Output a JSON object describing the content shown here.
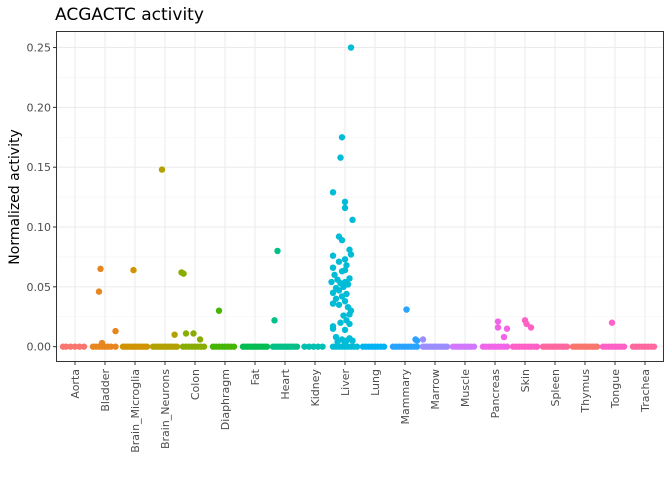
{
  "chart_data": {
    "type": "scatter",
    "title": "ACGACTC activity",
    "xlabel": "",
    "ylabel": "Normalized activity",
    "ylim": [
      -0.012,
      0.263
    ],
    "yticks": [
      "0.00",
      "0.05",
      "0.10",
      "0.15",
      "0.20",
      "0.25"
    ],
    "grid": true,
    "legend": "none",
    "categories": [
      "Aorta",
      "Bladder",
      "Brain_Microglia",
      "Brain_Neurons",
      "Colon",
      "Diaphragm",
      "Fat",
      "Heart",
      "Kidney",
      "Liver",
      "Lung",
      "Mammary",
      "Marrow",
      "Muscle",
      "Pancreas",
      "Skin",
      "Spleen",
      "Thymus",
      "Tongue",
      "Trachea"
    ],
    "colors": [
      "#F8766D",
      "#E7851E",
      "#D09400",
      "#B2A100",
      "#89AC00",
      "#45B500",
      "#00BC51",
      "#00C087",
      "#00C0B2",
      "#00BCD6",
      "#00B3F2",
      "#29A3FF",
      "#9C8DFF",
      "#D277FF",
      "#F166E8",
      "#FF61C7",
      "#FF689E",
      "#F8766D",
      "#FF61C7",
      "#FF689E"
    ],
    "series": [
      {
        "name": "Aorta",
        "points": [
          [
            -0.4,
            0
          ],
          [
            -0.3,
            0
          ],
          [
            -0.15,
            0
          ],
          [
            0.0,
            0
          ],
          [
            0.15,
            0
          ],
          [
            0.3,
            0
          ]
        ]
      },
      {
        "name": "Bladder",
        "points": [
          [
            -0.4,
            0
          ],
          [
            -0.3,
            0
          ],
          [
            -0.2,
            0
          ],
          [
            -0.1,
            0
          ],
          [
            0.0,
            0
          ],
          [
            0.1,
            0
          ],
          [
            0.2,
            0
          ],
          [
            0.35,
            0
          ],
          [
            -0.15,
            0.065
          ],
          [
            -0.2,
            0.046
          ],
          [
            0.35,
            0.013
          ],
          [
            -0.1,
            0.003
          ]
        ]
      },
      {
        "name": "Brain_Microglia",
        "points": [
          [
            -0.4,
            0
          ],
          [
            -0.32,
            0
          ],
          [
            -0.24,
            0
          ],
          [
            -0.16,
            0
          ],
          [
            -0.08,
            0
          ],
          [
            0.0,
            0
          ],
          [
            0.08,
            0
          ],
          [
            0.16,
            0
          ],
          [
            0.24,
            0
          ],
          [
            0.32,
            0
          ],
          [
            0.4,
            0
          ],
          [
            -0.05,
            0.064
          ]
        ]
      },
      {
        "name": "Brain_Neurons",
        "points": [
          [
            -0.4,
            0
          ],
          [
            -0.32,
            0
          ],
          [
            -0.24,
            0
          ],
          [
            -0.16,
            0
          ],
          [
            -0.08,
            0
          ],
          [
            0.0,
            0
          ],
          [
            0.08,
            0
          ],
          [
            0.16,
            0
          ],
          [
            0.24,
            0
          ],
          [
            0.32,
            0
          ],
          [
            0.4,
            0
          ],
          [
            -0.1,
            0.148
          ],
          [
            0.32,
            0.01
          ]
        ]
      },
      {
        "name": "Colon",
        "points": [
          [
            -0.4,
            0
          ],
          [
            -0.3,
            0
          ],
          [
            -0.2,
            0
          ],
          [
            -0.1,
            0
          ],
          [
            0.0,
            0
          ],
          [
            0.1,
            0
          ],
          [
            0.2,
            0
          ],
          [
            0.3,
            0
          ],
          [
            -0.45,
            0.062
          ],
          [
            -0.38,
            0.061
          ],
          [
            -0.3,
            0.011
          ],
          [
            -0.05,
            0.011
          ],
          [
            0.17,
            0.006
          ]
        ]
      },
      {
        "name": "Diaphragm",
        "points": [
          [
            -0.4,
            0
          ],
          [
            -0.3,
            0
          ],
          [
            -0.2,
            0
          ],
          [
            -0.1,
            0
          ],
          [
            0.0,
            0
          ],
          [
            0.1,
            0
          ],
          [
            0.2,
            0
          ],
          [
            0.3,
            0
          ],
          [
            -0.2,
            0.03
          ]
        ]
      },
      {
        "name": "Fat",
        "points": [
          [
            -0.4,
            0
          ],
          [
            -0.32,
            0
          ],
          [
            -0.24,
            0
          ],
          [
            -0.16,
            0
          ],
          [
            -0.08,
            0
          ],
          [
            0.0,
            0
          ],
          [
            0.08,
            0
          ],
          [
            0.16,
            0
          ],
          [
            0.24,
            0
          ],
          [
            0.32,
            0
          ],
          [
            0.4,
            0
          ]
        ]
      },
      {
        "name": "Heart",
        "points": [
          [
            -0.4,
            0
          ],
          [
            -0.32,
            0
          ],
          [
            -0.24,
            0
          ],
          [
            -0.16,
            0
          ],
          [
            -0.08,
            0
          ],
          [
            0.0,
            0
          ],
          [
            0.08,
            0
          ],
          [
            0.16,
            0
          ],
          [
            0.24,
            0
          ],
          [
            0.32,
            0
          ],
          [
            0.4,
            0
          ],
          [
            -0.25,
            0.08
          ],
          [
            -0.35,
            0.022
          ]
        ]
      },
      {
        "name": "Kidney",
        "points": [
          [
            -0.35,
            0
          ],
          [
            -0.2,
            0
          ],
          [
            -0.05,
            0
          ],
          [
            0.1,
            0
          ],
          [
            0.25,
            0
          ]
        ]
      },
      {
        "name": "Liver",
        "points": [
          [
            -0.4,
            0
          ],
          [
            -0.3,
            0
          ],
          [
            -0.2,
            0
          ],
          [
            -0.1,
            0
          ],
          [
            0.0,
            0
          ],
          [
            0.1,
            0
          ],
          [
            0.2,
            0
          ],
          [
            0.3,
            0
          ],
          [
            0.4,
            0
          ],
          [
            0.2,
            0.25
          ],
          [
            -0.1,
            0.175
          ],
          [
            -0.15,
            0.158
          ],
          [
            -0.4,
            0.129
          ],
          [
            0.0,
            0.121
          ],
          [
            0.0,
            0.116
          ],
          [
            0.25,
            0.106
          ],
          [
            -0.2,
            0.092
          ],
          [
            -0.1,
            0.089
          ],
          [
            0.15,
            0.081
          ],
          [
            0.2,
            0.077
          ],
          [
            -0.4,
            0.076
          ],
          [
            0.0,
            0.073
          ],
          [
            -0.2,
            0.071
          ],
          [
            0.05,
            0.068
          ],
          [
            -0.4,
            0.066
          ],
          [
            0.0,
            0.064
          ],
          [
            -0.1,
            0.063
          ],
          [
            -0.35,
            0.06
          ],
          [
            0.15,
            0.057
          ],
          [
            -0.25,
            0.056
          ],
          [
            -0.45,
            0.054
          ],
          [
            0.0,
            0.054
          ],
          [
            -0.15,
            0.053
          ],
          [
            0.1,
            0.052
          ],
          [
            -0.05,
            0.05
          ],
          [
            -0.3,
            0.049
          ],
          [
            -0.2,
            0.047
          ],
          [
            -0.4,
            0.045
          ],
          [
            0.05,
            0.044
          ],
          [
            -0.1,
            0.042
          ],
          [
            -0.3,
            0.04
          ],
          [
            0.0,
            0.038
          ],
          [
            -0.4,
            0.036
          ],
          [
            -0.2,
            0.035
          ],
          [
            0.1,
            0.033
          ],
          [
            0.2,
            0.03
          ],
          [
            0.15,
            0.027
          ],
          [
            -0.05,
            0.026
          ],
          [
            0.05,
            0.022
          ],
          [
            -0.15,
            0.02
          ],
          [
            0.15,
            0.019
          ],
          [
            -0.4,
            0.017
          ],
          [
            -0.4,
            0.015
          ],
          [
            0.0,
            0.014
          ],
          [
            -0.3,
            0.008
          ],
          [
            0.15,
            0.007
          ],
          [
            -0.1,
            0.006
          ],
          [
            0.05,
            0.005
          ],
          [
            0.25,
            0.005
          ],
          [
            -0.25,
            0.004
          ],
          [
            0.0,
            0.003
          ]
        ]
      },
      {
        "name": "Lung",
        "points": [
          [
            -0.4,
            0
          ],
          [
            -0.3,
            0
          ],
          [
            -0.2,
            0
          ],
          [
            -0.1,
            0
          ],
          [
            0.0,
            0
          ],
          [
            0.1,
            0
          ],
          [
            0.2,
            0
          ],
          [
            0.3,
            0
          ]
        ]
      },
      {
        "name": "Mammary",
        "points": [
          [
            -0.4,
            0
          ],
          [
            -0.3,
            0
          ],
          [
            -0.2,
            0
          ],
          [
            -0.1,
            0
          ],
          [
            0.0,
            0
          ],
          [
            0.1,
            0
          ],
          [
            0.2,
            0
          ],
          [
            0.3,
            0
          ],
          [
            0.4,
            0
          ],
          [
            0.05,
            0.031
          ],
          [
            0.35,
            0.006
          ],
          [
            0.4,
            0.005
          ]
        ]
      },
      {
        "name": "Marrow",
        "points": [
          [
            -0.4,
            0
          ],
          [
            -0.32,
            0
          ],
          [
            -0.24,
            0
          ],
          [
            -0.16,
            0
          ],
          [
            -0.08,
            0
          ],
          [
            0.0,
            0
          ],
          [
            0.08,
            0
          ],
          [
            0.16,
            0
          ],
          [
            0.24,
            0
          ],
          [
            0.32,
            0
          ],
          [
            0.4,
            0
          ],
          [
            -0.4,
            0.006
          ]
        ]
      },
      {
        "name": "Muscle",
        "points": [
          [
            -0.4,
            0
          ],
          [
            -0.3,
            0
          ],
          [
            -0.2,
            0
          ],
          [
            -0.1,
            0
          ],
          [
            0.0,
            0
          ],
          [
            0.1,
            0
          ],
          [
            0.2,
            0
          ],
          [
            0.3,
            0
          ]
        ]
      },
      {
        "name": "Pancreas",
        "points": [
          [
            -0.4,
            0
          ],
          [
            -0.3,
            0
          ],
          [
            -0.2,
            0
          ],
          [
            -0.1,
            0
          ],
          [
            0.0,
            0
          ],
          [
            0.1,
            0
          ],
          [
            0.2,
            0
          ],
          [
            0.3,
            0
          ],
          [
            0.4,
            0
          ],
          [
            0.1,
            0.021
          ],
          [
            0.1,
            0.016
          ],
          [
            0.3,
            0.008
          ],
          [
            0.4,
            0.015
          ]
        ]
      },
      {
        "name": "Skin",
        "points": [
          [
            -0.4,
            0
          ],
          [
            -0.3,
            0
          ],
          [
            -0.2,
            0
          ],
          [
            -0.1,
            0
          ],
          [
            0.0,
            0
          ],
          [
            0.1,
            0
          ],
          [
            0.2,
            0
          ],
          [
            0.3,
            0
          ],
          [
            0.4,
            0
          ],
          [
            0.0,
            0.022
          ],
          [
            0.05,
            0.019
          ],
          [
            0.2,
            0.016
          ]
        ]
      },
      {
        "name": "Spleen",
        "points": [
          [
            -0.4,
            0
          ],
          [
            -0.32,
            0
          ],
          [
            -0.24,
            0
          ],
          [
            -0.16,
            0
          ],
          [
            -0.08,
            0
          ],
          [
            0.0,
            0
          ],
          [
            0.08,
            0
          ],
          [
            0.16,
            0
          ],
          [
            0.24,
            0
          ],
          [
            0.32,
            0
          ],
          [
            0.4,
            0
          ]
        ]
      },
      {
        "name": "Thymus",
        "points": [
          [
            -0.4,
            0
          ],
          [
            -0.32,
            0
          ],
          [
            -0.24,
            0
          ],
          [
            -0.16,
            0
          ],
          [
            -0.08,
            0
          ],
          [
            0.0,
            0
          ],
          [
            0.08,
            0
          ],
          [
            0.16,
            0
          ],
          [
            0.24,
            0
          ],
          [
            0.32,
            0
          ],
          [
            0.4,
            0
          ]
        ]
      },
      {
        "name": "Tongue",
        "points": [
          [
            -0.4,
            0
          ],
          [
            -0.3,
            0
          ],
          [
            -0.2,
            0
          ],
          [
            -0.1,
            0
          ],
          [
            0.0,
            0
          ],
          [
            0.1,
            0
          ],
          [
            0.2,
            0
          ],
          [
            0.3,
            0
          ],
          [
            -0.1,
            0.02
          ]
        ]
      },
      {
        "name": "Trachea",
        "points": [
          [
            -0.4,
            0
          ],
          [
            -0.3,
            0
          ],
          [
            -0.2,
            0
          ],
          [
            -0.1,
            0
          ],
          [
            0.0,
            0
          ],
          [
            0.1,
            0
          ],
          [
            0.2,
            0
          ],
          [
            0.3,
            0
          ]
        ]
      }
    ]
  }
}
